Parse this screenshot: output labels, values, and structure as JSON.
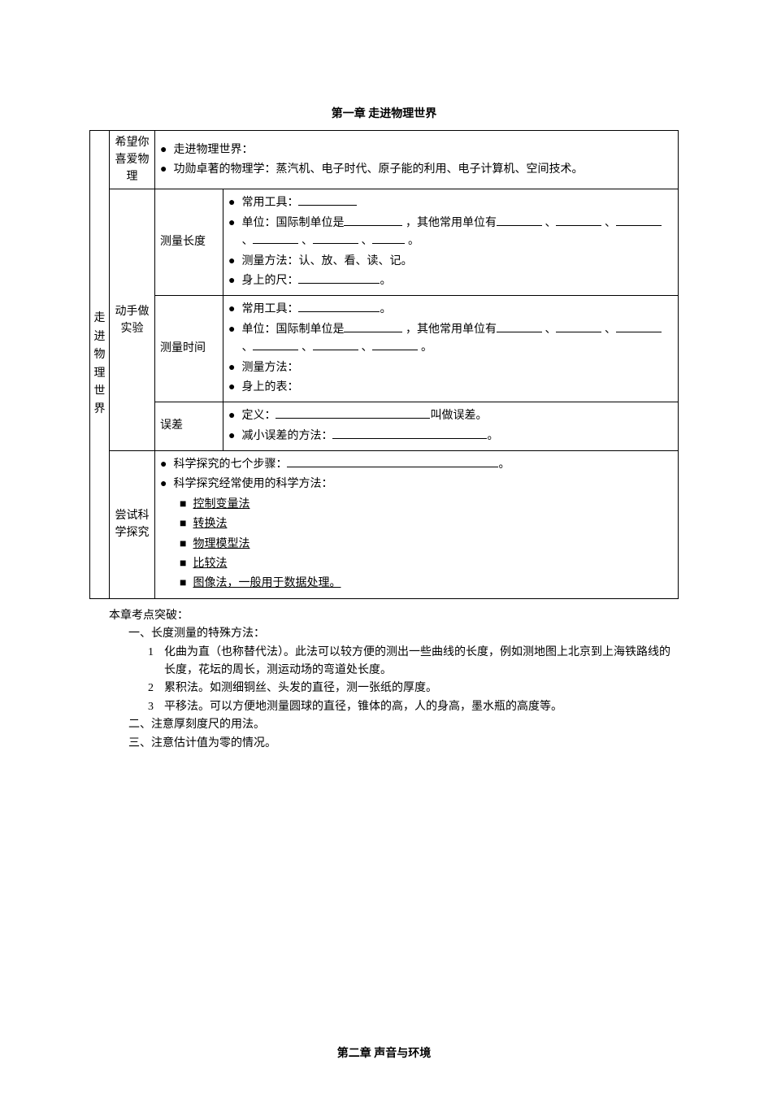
{
  "chapter1_title": "第一章 走进物理世界",
  "chapter2_title": "第二章 声音与环境",
  "left_title": "走进物理世界",
  "r1": {
    "head": "希望你喜爱物理",
    "b1": "走进物理世界：",
    "b2": "功勋卓著的物理学：蒸汽机、电子时代、原子能的利用、电子计算机、空间技术。"
  },
  "r2": {
    "head": "动手做实验",
    "sub1": {
      "head": "测量长度",
      "b1a": "常用工具：",
      "b2a": "单位：国际制单位是",
      "b2b": "，其他常用单位有",
      "b2c": "、",
      "b2d": "、",
      "b2e": "、",
      "b2f": "、",
      "b2g": "、",
      "b2h": "。",
      "b3": "测量方法：认、放、看、读、记。",
      "b4a": "身上的尺：",
      "b4b": "。"
    },
    "sub2": {
      "head": "测量时间",
      "b1a": "常用工具：",
      "b1b": "。",
      "b2a": "单位：国际制单位是",
      "b2b": "，其他常用单位有",
      "b2c": "、",
      "b2d": "、",
      "b2e": "、",
      "b2f": "、",
      "b2g": "、",
      "b2h": "。",
      "b3": "测量方法：",
      "b4": "身上的表："
    },
    "sub3": {
      "head": "误差",
      "b1a": "定义：",
      "b1b": "叫做误差。",
      "b2a": "减小误差的方法：",
      "b2b": "。"
    }
  },
  "r3": {
    "head": "尝试科学探究",
    "b1a": "科学探究的七个步骤：",
    "b1b": "。",
    "b2": "科学探究经常使用的科学方法：",
    "s1": "控制变量法",
    "s2": "转换法",
    "s3": "物理模型法",
    "s4": "比较法",
    "s5": "图像法，一般用于数据处理。"
  },
  "below": {
    "head": "本章考点突破：",
    "i1": "一、长度测量的特殊方法：",
    "n1": {
      "num": "1",
      "text": "化曲为直（也称替代法）。此法可以较方便的测出一些曲线的长度，例如测地图上北京到上海铁路线的长度，花坛的周长，测运动场的弯道处长度。"
    },
    "n2": {
      "num": "2",
      "text": "累积法。如测细铜丝、头发的直径，测一张纸的厚度。"
    },
    "n3": {
      "num": "3",
      "text": "平移法。可以方便地测量圆球的直径，锥体的高，人的身高，墨水瓶的高度等。"
    },
    "i2": "二、注意厚刻度尺的用法。",
    "i3": "三、注意估计值为零的情况。"
  }
}
